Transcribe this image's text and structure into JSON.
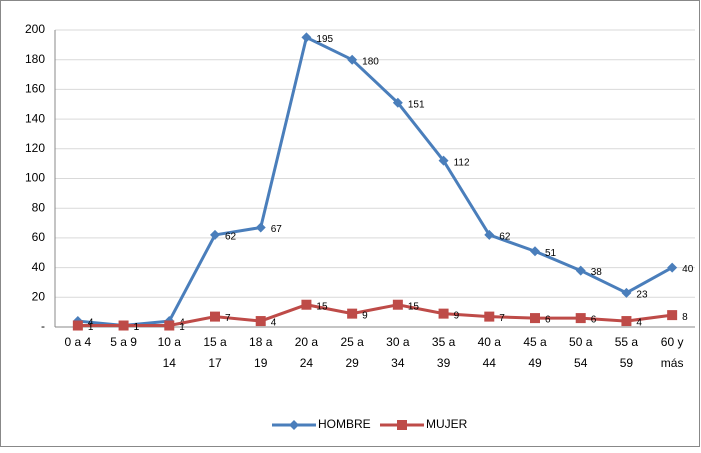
{
  "chart_data": {
    "type": "line",
    "categories": [
      "0 a 4",
      "5 a 9",
      "10 a 14",
      "15 a 17",
      "18 a 19",
      "20 a 24",
      "25 a 29",
      "30 a 34",
      "35 a 39",
      "40 a 44",
      "45 a 49",
      "50 a 54",
      "55 a 59",
      "60 y más"
    ],
    "series": [
      {
        "name": "HOMBRE",
        "color": "#4a7ebb",
        "marker": "diamond",
        "values": [
          4,
          1,
          4,
          62,
          67,
          195,
          180,
          151,
          112,
          62,
          51,
          38,
          23,
          40
        ]
      },
      {
        "name": "MUJER",
        "color": "#be4b48",
        "marker": "square",
        "values": [
          1,
          1,
          1,
          7,
          4,
          15,
          9,
          15,
          9,
          7,
          6,
          6,
          4,
          8
        ]
      }
    ],
    "ylim": [
      0,
      200
    ],
    "yticks": [
      {
        "value": 0,
        "label": "-"
      },
      20,
      40,
      60,
      80,
      100,
      120,
      140,
      160,
      180,
      200
    ],
    "grid": true,
    "legend": "bottom"
  }
}
